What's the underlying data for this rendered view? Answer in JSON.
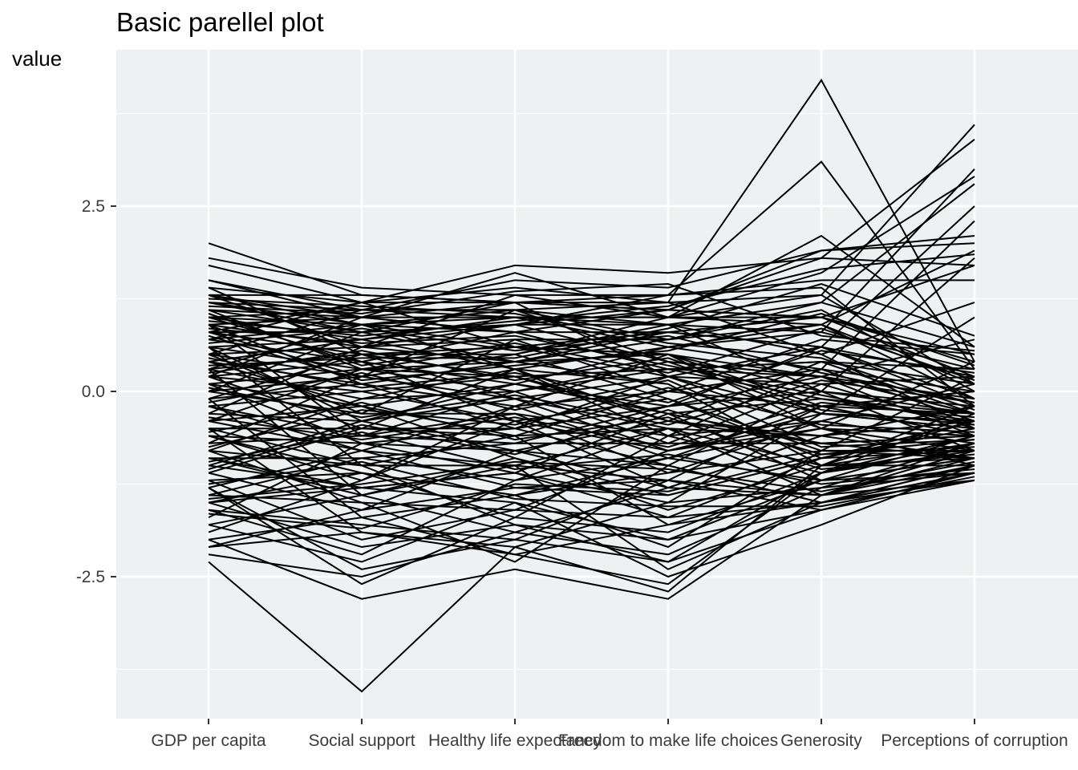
{
  "chart_data": {
    "type": "line",
    "title": "Basic parellel plot",
    "ylabel": "value",
    "xlabel": "",
    "categories": [
      "GDP per capita",
      "Social support",
      "Healthy life expectancy",
      "Freedom to make life choices",
      "Generosity",
      "Perceptions of corruption"
    ],
    "ylim": [
      -3.85,
      4.5
    ],
    "yticks": [
      -2.5,
      0.0,
      2.5
    ],
    "ytick_labels": [
      "-2.5",
      "0.0",
      "2.5"
    ],
    "minor_gridlines": [
      -3.75,
      -1.25,
      1.25,
      3.75
    ],
    "grid": true,
    "legend": "none",
    "colors": {
      "panel_background": "#edf1f2",
      "gridline": "#ffffff",
      "line": "#000000",
      "tick": "#333333"
    },
    "series": [
      {
        "values": [
          2.0,
          1.3,
          1.2,
          1.1,
          1.0,
          0.2
        ]
      },
      {
        "values": [
          1.8,
          1.4,
          1.3,
          1.3,
          1.5,
          1.5
        ]
      },
      {
        "values": [
          1.7,
          1.2,
          1.7,
          1.6,
          1.8,
          1.7
        ]
      },
      {
        "values": [
          1.5,
          1.1,
          1.5,
          1.4,
          1.9,
          2.0
        ]
      },
      {
        "values": [
          1.4,
          1.2,
          1.4,
          1.2,
          4.2,
          0.4
        ]
      },
      {
        "values": [
          1.3,
          1.3,
          1.2,
          1.3,
          3.1,
          0.3
        ]
      },
      {
        "values": [
          1.3,
          1.0,
          1.6,
          1.0,
          2.1,
          0.6
        ]
      },
      {
        "values": [
          1.2,
          1.1,
          1.1,
          1.2,
          1.3,
          3.6
        ]
      },
      {
        "values": [
          1.1,
          1.0,
          1.2,
          1.1,
          1.8,
          3.4
        ]
      },
      {
        "values": [
          1.2,
          0.9,
          1.0,
          1.0,
          1.6,
          2.9
        ]
      },
      {
        "values": [
          1.0,
          0.9,
          1.1,
          0.9,
          0.8,
          3.0
        ]
      },
      {
        "values": [
          1.1,
          0.8,
          0.9,
          0.9,
          1.2,
          2.8
        ]
      },
      {
        "values": [
          0.9,
          1.0,
          0.8,
          0.8,
          0.6,
          2.5
        ]
      },
      {
        "values": [
          1.0,
          0.7,
          1.0,
          0.6,
          0.3,
          2.3
        ]
      },
      {
        "values": [
          0.8,
          0.8,
          0.9,
          1.1,
          1.9,
          2.1
        ]
      },
      {
        "values": [
          0.9,
          0.6,
          0.7,
          0.7,
          0.9,
          1.9
        ]
      },
      {
        "values": [
          0.7,
          0.9,
          0.6,
          0.5,
          0.0,
          1.8
        ]
      },
      {
        "values": [
          1.0,
          1.1,
          1.0,
          1.0,
          1.0,
          1.7
        ]
      },
      {
        "values": [
          0.8,
          0.5,
          0.5,
          0.9,
          0.5,
          1.2
        ]
      },
      {
        "values": [
          0.6,
          0.7,
          0.9,
          0.4,
          -0.3,
          1.0
        ]
      },
      {
        "values": [
          0.7,
          0.4,
          0.8,
          0.3,
          0.2,
          0.7
        ]
      },
      {
        "values": [
          0.5,
          0.6,
          0.4,
          0.8,
          1.0,
          0.5
        ]
      },
      {
        "values": [
          0.6,
          0.3,
          0.6,
          0.2,
          -0.5,
          0.4
        ]
      },
      {
        "values": [
          0.4,
          0.7,
          0.3,
          0.6,
          0.8,
          0.3
        ]
      },
      {
        "values": [
          0.5,
          0.2,
          0.5,
          -0.1,
          -0.8,
          0.2
        ]
      },
      {
        "values": [
          0.3,
          0.5,
          0.2,
          0.3,
          0.4,
          0.1
        ]
      },
      {
        "values": [
          0.4,
          0.1,
          0.4,
          0.5,
          -0.2,
          0.0
        ]
      },
      {
        "values": [
          0.2,
          0.4,
          0.1,
          -0.2,
          0.6,
          -0.1
        ]
      },
      {
        "values": [
          0.3,
          -0.1,
          0.3,
          0.1,
          -1.0,
          -0.2
        ]
      },
      {
        "values": [
          0.1,
          0.3,
          0.0,
          0.4,
          0.2,
          -0.3
        ]
      },
      {
        "values": [
          0.2,
          0.0,
          0.2,
          -0.4,
          -0.6,
          -0.4
        ]
      },
      {
        "values": [
          0.0,
          0.2,
          -0.1,
          0.2,
          0.1,
          -0.5
        ]
      },
      {
        "values": [
          0.1,
          -0.2,
          0.1,
          -0.3,
          -1.2,
          -0.6
        ]
      },
      {
        "values": [
          -0.1,
          0.1,
          -0.2,
          0.0,
          0.3,
          -0.4
        ]
      },
      {
        "values": [
          0.0,
          -0.3,
          -0.3,
          -0.6,
          -0.4,
          -0.7
        ]
      },
      {
        "values": [
          -0.2,
          0.0,
          -0.4,
          -0.1,
          -0.9,
          -0.8
        ]
      },
      {
        "values": [
          -0.3,
          -0.4,
          -0.1,
          -0.8,
          -0.3,
          -0.5
        ]
      },
      {
        "values": [
          -0.4,
          -0.2,
          -0.6,
          -0.5,
          -1.4,
          -0.9
        ]
      },
      {
        "values": [
          -0.5,
          -0.5,
          -0.5,
          -0.2,
          0.0,
          -0.3
        ]
      },
      {
        "values": [
          -0.6,
          -0.7,
          -0.8,
          -1.0,
          -1.5,
          -1.0
        ]
      },
      {
        "values": [
          -0.7,
          -0.6,
          -0.7,
          -0.7,
          -0.7,
          -0.6
        ]
      },
      {
        "values": [
          -0.8,
          -1.0,
          -1.0,
          -1.2,
          -1.6,
          -1.1
        ]
      },
      {
        "values": [
          -0.9,
          -0.9,
          -1.2,
          -0.9,
          -0.5,
          -0.8
        ]
      },
      {
        "values": [
          -1.0,
          -1.3,
          -1.1,
          -1.5,
          -1.3,
          -0.7
        ]
      },
      {
        "values": [
          -1.2,
          -1.1,
          -1.4,
          -1.1,
          -0.8,
          -0.9
        ]
      },
      {
        "values": [
          -1.4,
          -1.5,
          -1.6,
          -1.7,
          -1.5,
          -1.0
        ]
      },
      {
        "values": [
          -1.5,
          -2.1,
          -1.8,
          -2.0,
          -1.2,
          -0.9
        ]
      },
      {
        "values": [
          -1.6,
          -1.8,
          -2.0,
          -2.3,
          -1.6,
          -1.1
        ]
      },
      {
        "values": [
          -1.8,
          -2.3,
          -1.5,
          -2.5,
          -1.8,
          -1.0
        ]
      },
      {
        "values": [
          -2.0,
          -2.8,
          -2.4,
          -2.8,
          -1.4,
          -1.2
        ]
      },
      {
        "values": [
          -2.1,
          -1.9,
          -2.2,
          -2.6,
          -1.1,
          -0.8
        ]
      },
      {
        "values": [
          -2.3,
          -4.05,
          -2.1,
          -2.7,
          -1.0,
          -0.7
        ]
      },
      {
        "values": [
          -2.2,
          -2.5,
          -1.9,
          -2.2,
          -1.3,
          -1.1
        ]
      },
      {
        "values": [
          -1.3,
          -2.6,
          -1.7,
          -1.9,
          -1.1,
          -0.6
        ]
      },
      {
        "values": [
          -1.1,
          -1.6,
          -1.3,
          -1.4,
          -0.9,
          -0.5
        ]
      },
      {
        "values": [
          -0.9,
          -1.4,
          -0.9,
          -1.6,
          -1.0,
          -0.4
        ]
      },
      {
        "values": [
          -0.6,
          -1.2,
          -0.4,
          -1.3,
          -0.6,
          -0.2
        ]
      },
      {
        "values": [
          -0.4,
          -0.8,
          -0.2,
          -0.9,
          -0.2,
          0.0
        ]
      },
      {
        "values": [
          -0.2,
          -0.6,
          0.0,
          -0.7,
          0.1,
          0.2
        ]
      },
      {
        "values": [
          0.2,
          -0.5,
          0.3,
          -0.4,
          0.4,
          0.3
        ]
      },
      {
        "values": [
          0.5,
          -0.3,
          0.7,
          0.0,
          0.7,
          0.5
        ]
      },
      {
        "values": [
          0.8,
          0.2,
          1.1,
          0.7,
          1.2,
          0.6
        ]
      },
      {
        "values": [
          1.3,
          0.6,
          1.3,
          1.0,
          0.9,
          0.1
        ]
      },
      {
        "values": [
          1.5,
          1.0,
          0.8,
          0.3,
          -0.1,
          -0.3
        ]
      },
      {
        "values": [
          1.1,
          0.3,
          0.2,
          -0.3,
          -0.7,
          -0.6
        ]
      },
      {
        "values": [
          0.9,
          -0.6,
          -0.3,
          -1.1,
          -0.4,
          -0.7
        ]
      },
      {
        "values": [
          0.6,
          -1.0,
          -0.6,
          -1.8,
          -1.2,
          -0.9
        ]
      },
      {
        "values": [
          0.3,
          -1.4,
          -1.0,
          -2.4,
          -1.5,
          -1.1
        ]
      },
      {
        "values": [
          -0.1,
          -1.7,
          -1.4,
          -2.1,
          -0.8,
          -0.8
        ]
      },
      {
        "values": [
          -0.5,
          -1.9,
          -2.1,
          -1.5,
          -0.3,
          -0.4
        ]
      },
      {
        "values": [
          -0.8,
          -1.5,
          -2.3,
          -1.0,
          0.0,
          -0.2
        ]
      },
      {
        "values": [
          -1.2,
          -2.0,
          -1.6,
          -0.8,
          -0.5,
          -0.6
        ]
      },
      {
        "values": [
          -1.4,
          -0.9,
          -0.7,
          -0.2,
          0.2,
          -0.3
        ]
      },
      {
        "values": [
          -1.0,
          -0.4,
          0.1,
          0.6,
          0.9,
          -0.1
        ]
      },
      {
        "values": [
          -0.7,
          0.2,
          0.5,
          1.0,
          1.3,
          0.1
        ]
      },
      {
        "values": [
          -0.3,
          0.6,
          0.9,
          1.3,
          1.4,
          -0.2
        ]
      },
      {
        "values": [
          0.0,
          0.8,
          1.2,
          1.2,
          0.5,
          -0.5
        ]
      },
      {
        "values": [
          0.2,
          1.0,
          1.0,
          0.9,
          0.0,
          -0.8
        ]
      },
      {
        "values": [
          0.7,
          1.2,
          0.6,
          0.5,
          -0.5,
          -1.0
        ]
      },
      {
        "values": [
          1.2,
          0.8,
          0.4,
          0.1,
          -1.0,
          -0.9
        ]
      },
      {
        "values": [
          1.4,
          0.5,
          -0.1,
          -0.5,
          -1.4,
          -0.7
        ]
      },
      {
        "values": [
          0.9,
          0.1,
          -0.5,
          -1.0,
          -1.5,
          -1.1
        ]
      },
      {
        "values": [
          0.4,
          -0.2,
          -0.9,
          -1.4,
          -0.9,
          -0.5
        ]
      },
      {
        "values": [
          -0.2,
          -0.8,
          -1.3,
          -1.2,
          -0.2,
          -0.3
        ]
      },
      {
        "values": [
          -0.6,
          -1.1,
          -1.7,
          -0.6,
          0.3,
          0.0
        ]
      },
      {
        "values": [
          -1.5,
          -1.3,
          -1.1,
          -0.3,
          -0.1,
          -0.4
        ]
      },
      {
        "values": [
          -1.7,
          -0.7,
          -0.5,
          0.2,
          0.6,
          -0.2
        ]
      },
      {
        "values": [
          -1.9,
          -1.2,
          -0.2,
          0.5,
          0.2,
          -0.6
        ]
      },
      {
        "values": [
          -2.1,
          -1.6,
          -0.8,
          -0.4,
          -0.7,
          -0.9
        ]
      },
      {
        "values": [
          -1.6,
          -2.2,
          -1.2,
          -0.5,
          -1.0,
          -1.0
        ]
      },
      {
        "values": [
          -1.3,
          -2.4,
          -2.0,
          -1.2,
          -1.4,
          -0.8
        ]
      },
      {
        "values": [
          -0.9,
          -1.3,
          -1.5,
          -2.0,
          -1.6,
          -1.2
        ]
      },
      {
        "values": [
          -0.5,
          -1.0,
          -1.8,
          -2.3,
          -1.1,
          -0.7
        ]
      },
      {
        "values": [
          0.1,
          -0.7,
          -1.1,
          -1.7,
          -0.9,
          -0.4
        ]
      },
      {
        "values": [
          0.6,
          -0.4,
          -0.8,
          -1.3,
          -0.6,
          -0.2
        ]
      },
      {
        "values": [
          1.0,
          0.4,
          -0.4,
          -0.8,
          -0.4,
          0.1
        ]
      },
      {
        "values": [
          1.3,
          0.9,
          0.3,
          -0.6,
          -1.1,
          -0.3
        ]
      },
      {
        "values": [
          0.8,
          1.2,
          1.2,
          0.2,
          -0.3,
          -0.5
        ]
      },
      {
        "values": [
          0.5,
          1.1,
          1.1,
          0.4,
          0.2,
          -0.1
        ]
      },
      {
        "values": [
          0.3,
          0.9,
          0.8,
          1.1,
          1.0,
          0.4
        ]
      },
      {
        "values": [
          -0.1,
          0.5,
          0.6,
          0.8,
          0.6,
          0.2
        ]
      },
      {
        "values": [
          -0.4,
          0.3,
          0.4,
          0.7,
          1.1,
          0.0
        ]
      },
      {
        "values": [
          -0.8,
          -0.1,
          0.0,
          0.3,
          0.4,
          -0.3
        ]
      },
      {
        "values": [
          -1.1,
          -0.5,
          -0.6,
          0.0,
          -0.2,
          -0.6
        ]
      },
      {
        "values": [
          -1.3,
          -0.8,
          -1.0,
          -0.5,
          -0.6,
          -0.9
        ]
      },
      {
        "values": [
          -1.5,
          -1.1,
          -1.4,
          -0.9,
          -1.2,
          -1.1
        ]
      },
      {
        "values": [
          -1.8,
          -1.4,
          -1.9,
          -1.3,
          -1.4,
          -1.0
        ]
      },
      {
        "values": [
          -2.0,
          -1.7,
          -2.2,
          -1.8,
          -1.5,
          -1.2
        ]
      },
      {
        "values": [
          0.95,
          0.75,
          0.95,
          1.15,
          1.65,
          1.85
        ]
      },
      {
        "values": [
          1.15,
          1.05,
          1.35,
          1.45,
          0.75,
          0.55
        ]
      },
      {
        "values": [
          0.65,
          0.85,
          0.55,
          0.75,
          0.25,
          -0.15
        ]
      },
      {
        "values": [
          0.25,
          0.55,
          0.15,
          0.45,
          -0.25,
          -0.45
        ]
      },
      {
        "values": [
          -0.15,
          0.25,
          -0.25,
          0.15,
          -0.75,
          -0.65
        ]
      },
      {
        "values": [
          -0.55,
          -0.15,
          -0.65,
          -0.35,
          -1.05,
          -0.85
        ]
      },
      {
        "values": [
          -0.95,
          -0.55,
          -1.05,
          -0.85,
          -1.25,
          -1.05
        ]
      },
      {
        "values": [
          -1.25,
          -0.95,
          -1.45,
          -1.55,
          -1.55,
          -1.15
        ]
      },
      {
        "values": [
          0.45,
          0.05,
          0.25,
          -0.15,
          0.55,
          0.25
        ]
      },
      {
        "values": [
          0.05,
          -0.35,
          -0.05,
          -0.45,
          0.15,
          -0.15
        ]
      },
      {
        "values": [
          -0.35,
          -0.65,
          -0.35,
          -0.75,
          -0.15,
          -0.35
        ]
      },
      {
        "values": [
          1.05,
          0.35,
          0.65,
          0.25,
          0.85,
          0.15
        ]
      },
      {
        "values": [
          0.75,
          0.15,
          0.35,
          0.55,
          1.05,
          0.35
        ]
      },
      {
        "values": [
          -0.75,
          -0.25,
          -0.45,
          0.05,
          -0.45,
          -0.55
        ]
      },
      {
        "values": [
          -1.05,
          -0.45,
          -0.85,
          -0.25,
          -0.85,
          -0.75
        ]
      },
      {
        "values": [
          1.25,
          1.15,
          1.05,
          0.65,
          0.45,
          -0.25
        ]
      },
      {
        "values": [
          0.85,
          0.65,
          0.75,
          0.35,
          -0.05,
          -0.45
        ]
      },
      {
        "values": [
          -1.45,
          -1.25,
          -0.95,
          -1.05,
          -1.35,
          -0.95
        ]
      },
      {
        "values": [
          -1.65,
          -1.85,
          -1.25,
          -1.35,
          -0.85,
          -0.65
        ]
      },
      {
        "values": [
          0.35,
          0.45,
          0.45,
          0.85,
          1.45,
          0.75
        ]
      }
    ]
  }
}
